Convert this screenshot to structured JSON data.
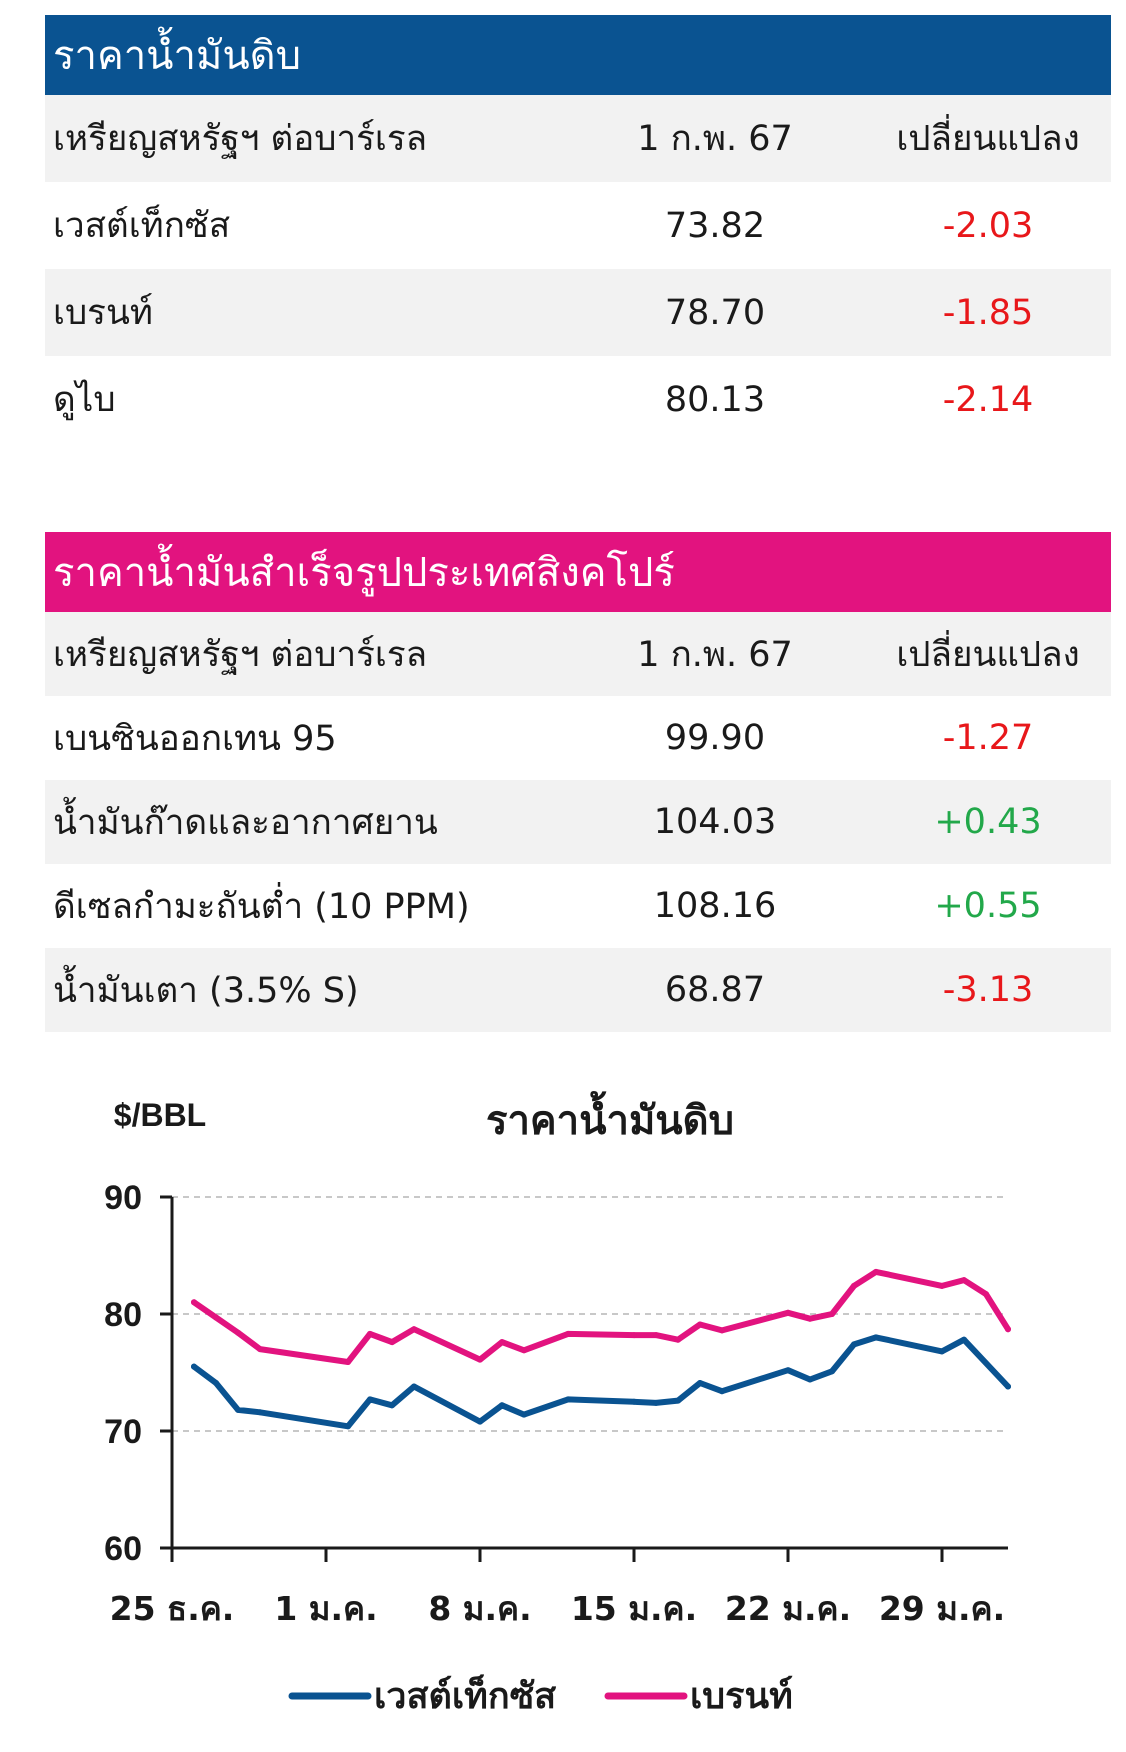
{
  "crude_table": {
    "title": "ราคาน้ำมันดิบ",
    "header": {
      "unit": "เหรียญสหรัฐฯ ต่อบาร์เรล",
      "date": "1 ก.พ. 67",
      "change": "เปลี่ยนแปลง"
    },
    "rows": [
      {
        "name": "เวสต์เท็กซัส",
        "price": "73.82",
        "change": "-2.03",
        "trend": "neg"
      },
      {
        "name": "เบรนท์",
        "price": "78.70",
        "change": "-1.85",
        "trend": "neg"
      },
      {
        "name": "ดูไบ",
        "price": "80.13",
        "change": "-2.14",
        "trend": "neg"
      }
    ]
  },
  "refined_table": {
    "title": "ราคาน้ำมันสำเร็จรูปประเทศสิงคโปร์",
    "header": {
      "unit": "เหรียญสหรัฐฯ ต่อบาร์เรล",
      "date": "1 ก.พ. 67",
      "change": "เปลี่ยนแปลง"
    },
    "rows": [
      {
        "name": "เบนซินออกเทน 95",
        "price": "99.90",
        "change": "-1.27",
        "trend": "neg"
      },
      {
        "name": "น้ำมันก๊าดและอากาศยาน",
        "price": "104.03",
        "change": "+0.43",
        "trend": "pos"
      },
      {
        "name": "ดีเซลกำมะถันต่ำ (10 PPM)",
        "price": "108.16",
        "change": "+0.55",
        "trend": "pos"
      },
      {
        "name": "น้ำมันเตา (3.5% S)",
        "price": "68.87",
        "change": "-3.13",
        "trend": "neg"
      }
    ]
  },
  "colors": {
    "wti": "#0a5391",
    "brent": "#e2137f",
    "negative": "#e8171a",
    "positive": "#22a84a"
  },
  "chart_data": {
    "type": "line",
    "title": "ราคาน้ำมันดิบ",
    "ylabel": "$/BBL",
    "ylim": [
      60,
      90
    ],
    "yticks": [
      60,
      70,
      80,
      90
    ],
    "grid": true,
    "xlim": [
      "2023-12-25",
      "2024-02-01"
    ],
    "x_tick_labels": [
      "25 ธ.ค.",
      "1 ม.ค.",
      "8 ม.ค.",
      "15 ม.ค.",
      "22 ม.ค.",
      "29 ม.ค."
    ],
    "x_tick_dates": [
      "2023-12-25",
      "2024-01-01",
      "2024-01-08",
      "2024-01-15",
      "2024-01-22",
      "2024-01-29"
    ],
    "legend_position": "bottom",
    "series": [
      {
        "name": "เวสต์เท็กซัส",
        "color": "#0a5391",
        "points": [
          [
            "2023-12-26",
            75.5
          ],
          [
            "2023-12-27",
            74.1
          ],
          [
            "2023-12-28",
            71.8
          ],
          [
            "2023-12-29",
            71.6
          ],
          [
            "2024-01-02",
            70.4
          ],
          [
            "2024-01-03",
            72.7
          ],
          [
            "2024-01-04",
            72.2
          ],
          [
            "2024-01-05",
            73.8
          ],
          [
            "2024-01-08",
            70.8
          ],
          [
            "2024-01-09",
            72.2
          ],
          [
            "2024-01-10",
            71.4
          ],
          [
            "2024-01-12",
            72.7
          ],
          [
            "2024-01-15",
            72.5
          ],
          [
            "2024-01-16",
            72.4
          ],
          [
            "2024-01-17",
            72.6
          ],
          [
            "2024-01-18",
            74.1
          ],
          [
            "2024-01-19",
            73.4
          ],
          [
            "2024-01-22",
            75.2
          ],
          [
            "2024-01-23",
            74.4
          ],
          [
            "2024-01-24",
            75.1
          ],
          [
            "2024-01-25",
            77.4
          ],
          [
            "2024-01-26",
            78.0
          ],
          [
            "2024-01-29",
            76.8
          ],
          [
            "2024-01-30",
            77.8
          ],
          [
            "2024-02-01",
            73.8
          ]
        ]
      },
      {
        "name": "เบรนท์",
        "color": "#e2137f",
        "points": [
          [
            "2023-12-26",
            81.0
          ],
          [
            "2023-12-27",
            79.7
          ],
          [
            "2023-12-28",
            78.4
          ],
          [
            "2023-12-29",
            77.0
          ],
          [
            "2024-01-02",
            75.9
          ],
          [
            "2024-01-03",
            78.3
          ],
          [
            "2024-01-04",
            77.6
          ],
          [
            "2024-01-05",
            78.7
          ],
          [
            "2024-01-08",
            76.1
          ],
          [
            "2024-01-09",
            77.6
          ],
          [
            "2024-01-10",
            76.9
          ],
          [
            "2024-01-12",
            78.3
          ],
          [
            "2024-01-15",
            78.2
          ],
          [
            "2024-01-16",
            78.2
          ],
          [
            "2024-01-17",
            77.8
          ],
          [
            "2024-01-18",
            79.1
          ],
          [
            "2024-01-19",
            78.6
          ],
          [
            "2024-01-22",
            80.1
          ],
          [
            "2024-01-23",
            79.6
          ],
          [
            "2024-01-24",
            80.0
          ],
          [
            "2024-01-25",
            82.4
          ],
          [
            "2024-01-26",
            83.6
          ],
          [
            "2024-01-29",
            82.4
          ],
          [
            "2024-01-30",
            82.9
          ],
          [
            "2024-01-31",
            81.7
          ],
          [
            "2024-02-01",
            78.7
          ]
        ]
      }
    ]
  }
}
